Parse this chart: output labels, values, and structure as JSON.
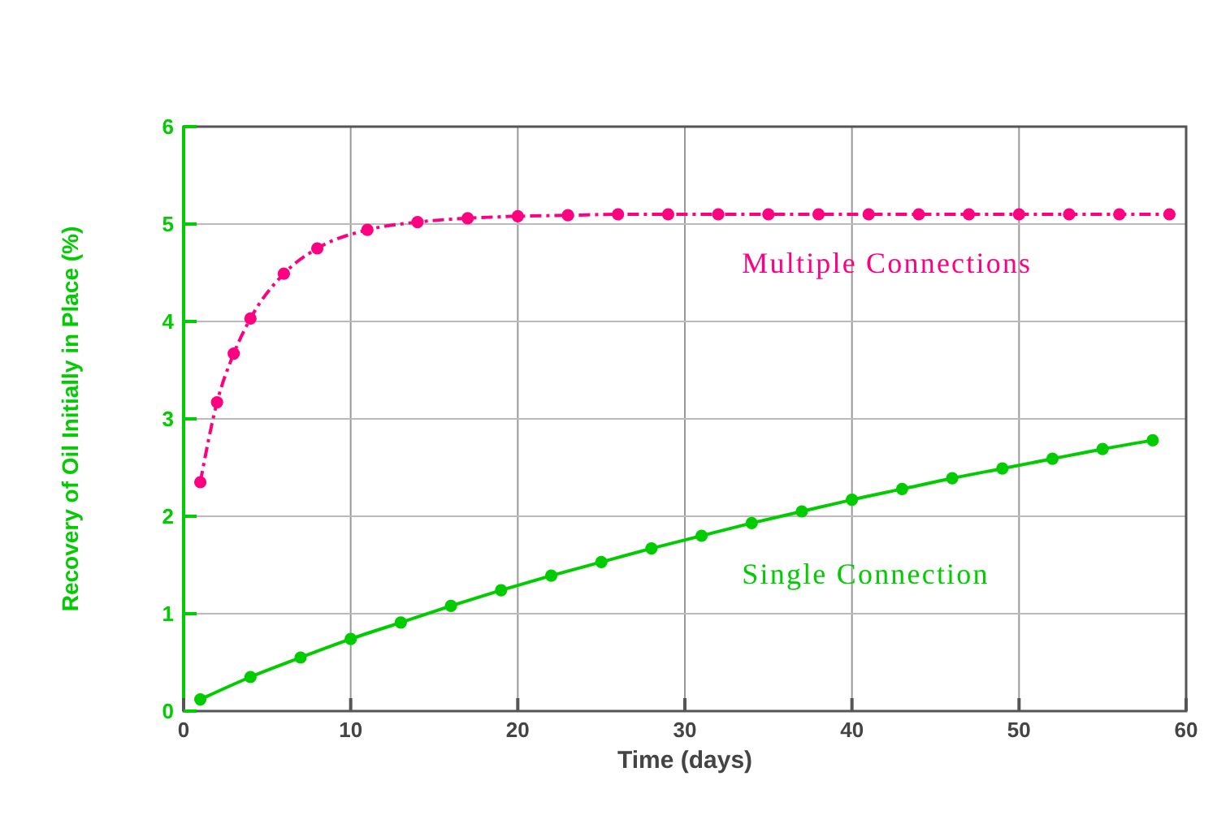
{
  "chart_data": {
    "type": "line",
    "xlabel": "Time (days)",
    "ylabel": "Recovery of Oil Initially in Place (%)",
    "xlim": [
      0,
      60
    ],
    "xticks": [
      0,
      10,
      20,
      30,
      40,
      50,
      60
    ],
    "ylim": [
      0,
      6
    ],
    "yticks": [
      0,
      1,
      2,
      3,
      4,
      5,
      6
    ],
    "grid": true,
    "marker": "circle",
    "series": [
      {
        "name": "Multiple Connections",
        "color": "#ff0080",
        "line_style": "dashed",
        "x": [
          1,
          2,
          3,
          4,
          6,
          8,
          11,
          14,
          17,
          20,
          23,
          26,
          29,
          32,
          35,
          38,
          41,
          44,
          47,
          50,
          53,
          56,
          59
        ],
        "values": [
          2.35,
          3.17,
          3.67,
          4.03,
          4.49,
          4.75,
          4.94,
          5.02,
          5.06,
          5.08,
          5.09,
          5.1,
          5.1,
          5.1,
          5.1,
          5.1,
          5.1,
          5.1,
          5.1,
          5.1,
          5.1,
          5.1,
          5.1
        ]
      },
      {
        "name": "Single Connection",
        "color": "#00cc00",
        "line_style": "solid",
        "x": [
          1,
          4,
          7,
          10,
          13,
          16,
          19,
          22,
          25,
          28,
          31,
          34,
          37,
          40,
          43,
          46,
          49,
          52,
          55,
          58
        ],
        "values": [
          0.12,
          0.35,
          0.55,
          0.74,
          0.91,
          1.08,
          1.24,
          1.39,
          1.53,
          1.67,
          1.8,
          1.93,
          2.05,
          2.17,
          2.28,
          2.39,
          2.49,
          2.59,
          2.69,
          2.78
        ]
      }
    ]
  }
}
